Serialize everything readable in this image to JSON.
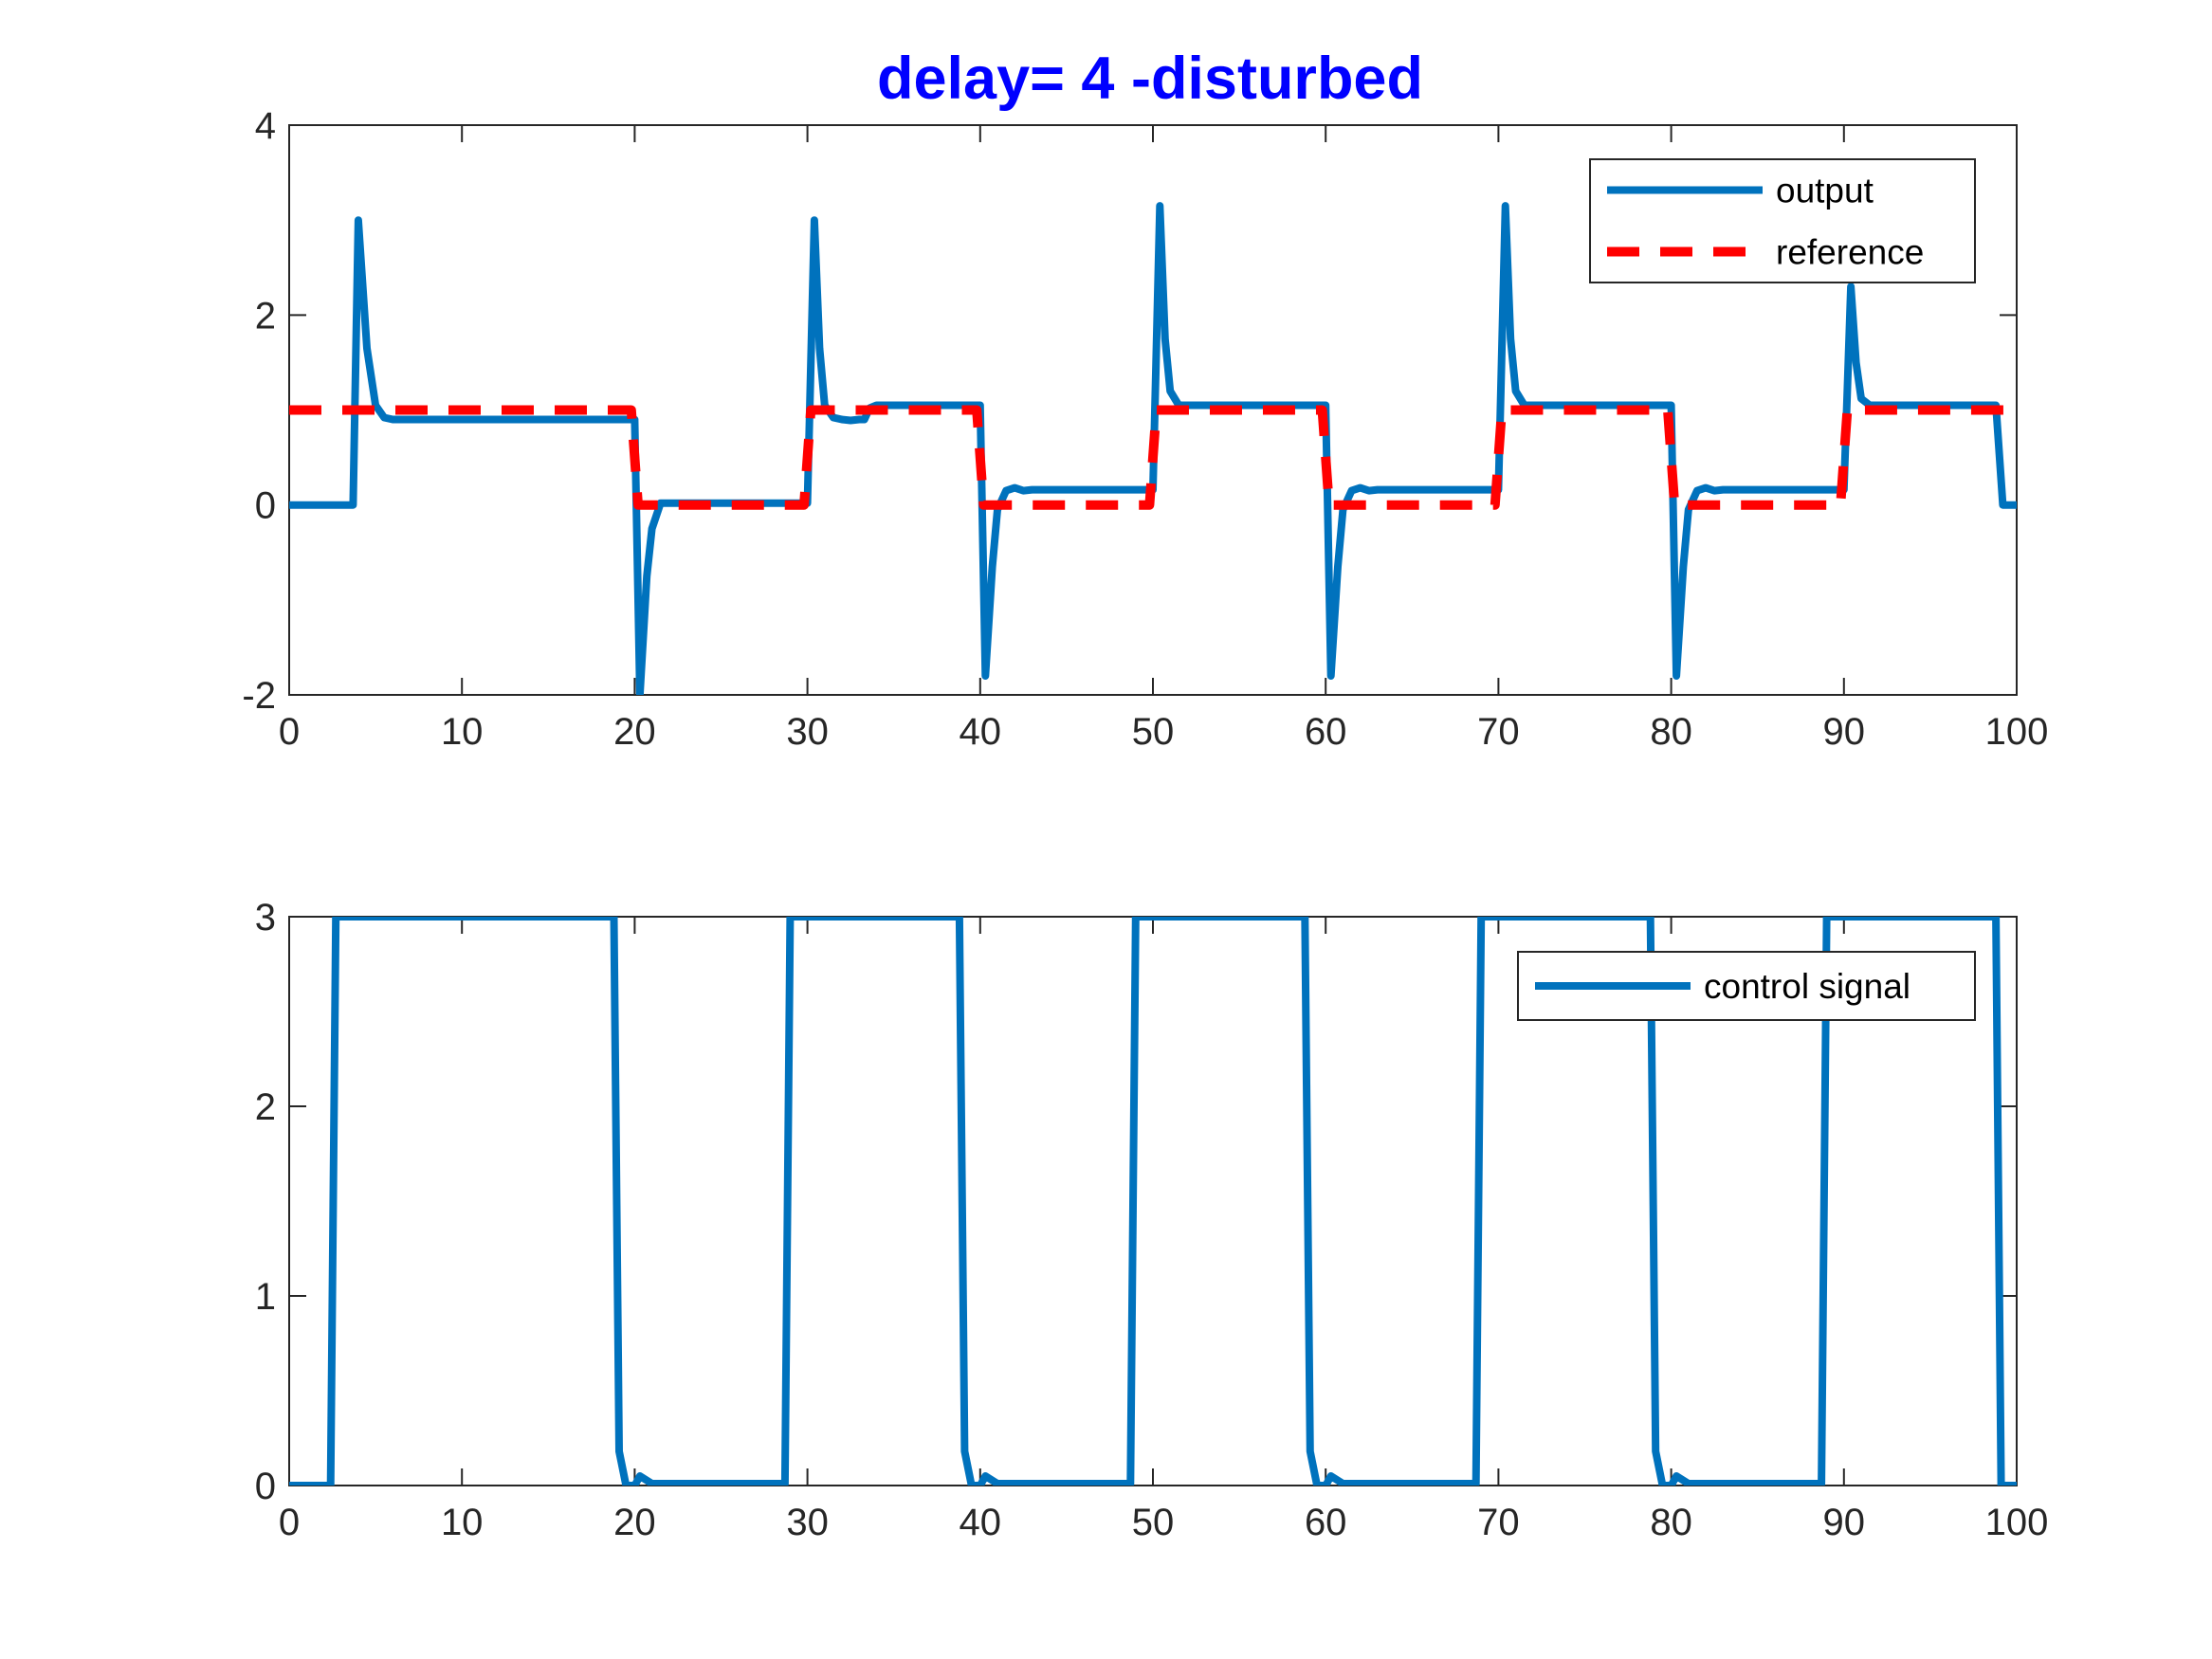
{
  "colors": {
    "output": "#0072bd",
    "reference": "#ff0000",
    "control": "#0072bd",
    "title": "#0000ff",
    "axes": "#262626"
  },
  "chart_data": [
    {
      "type": "line",
      "title": "delay= 4 -disturbed",
      "xlabel": "",
      "ylabel": "",
      "xlim": [
        0,
        100
      ],
      "ylim": [
        -2,
        4
      ],
      "xticks": [
        "0",
        "10",
        "20",
        "30",
        "40",
        "50",
        "60",
        "70",
        "80",
        "90",
        "100"
      ],
      "yticks": [
        "-2",
        "0",
        "2",
        "4"
      ],
      "grid": false,
      "legend_position": "top-right",
      "series": [
        {
          "name": "output",
          "style": "solid",
          "x": [
            0,
            3.7,
            4,
            4.5,
            5,
            5.5,
            6,
            7,
            10,
            15,
            19.8,
            20,
            20.3,
            20.7,
            21,
            21.5,
            22,
            22.5,
            23,
            24,
            29.8,
            30,
            30.4,
            30.7,
            31,
            31.5,
            32,
            32.5,
            33,
            33.3,
            33.6,
            34,
            35,
            39.8,
            40,
            40.3,
            40.7,
            41,
            41.5,
            42,
            42.5,
            43,
            45,
            49.8,
            50,
            50.4,
            50.7,
            51,
            51.5,
            52,
            55,
            59.8,
            60,
            60.3,
            60.7,
            61,
            61.5,
            62,
            62.5,
            63,
            65,
            69.8,
            70,
            70.4,
            70.7,
            71,
            71.5,
            72,
            75,
            79.8,
            80,
            80.3,
            80.7,
            81,
            81.5,
            82,
            82.5,
            83,
            85,
            89.8,
            90,
            90.4,
            90.7,
            91,
            91.5,
            92,
            95,
            98.5,
            98.8,
            99.2,
            100
          ],
          "values": [
            0,
            0,
            3.0,
            1.65,
            1.05,
            0.92,
            0.9,
            0.9,
            0.9,
            0.9,
            0.9,
            0.9,
            -2.0,
            -0.75,
            -0.25,
            0.02,
            0.02,
            0.02,
            0.02,
            0.02,
            0.02,
            0.02,
            3.0,
            1.65,
            1.05,
            0.92,
            0.9,
            0.89,
            0.9,
            0.9,
            1.02,
            1.05,
            1.05,
            1.05,
            1.05,
            -1.8,
            -0.65,
            -0.05,
            0.15,
            0.18,
            0.15,
            0.16,
            0.16,
            0.16,
            0.16,
            3.15,
            1.75,
            1.2,
            1.05,
            1.05,
            1.05,
            1.05,
            1.05,
            -1.8,
            -0.65,
            -0.05,
            0.15,
            0.18,
            0.15,
            0.16,
            0.16,
            0.16,
            0.16,
            3.15,
            1.75,
            1.2,
            1.05,
            1.05,
            1.05,
            1.05,
            1.05,
            -1.8,
            -0.65,
            -0.05,
            0.15,
            0.18,
            0.15,
            0.16,
            0.16,
            0.16,
            0.16,
            2.3,
            1.5,
            1.12,
            1.05,
            1.05,
            1.05,
            1.05,
            1.05,
            0,
            0
          ]
        },
        {
          "name": "reference",
          "style": "dashed",
          "x": [
            0,
            19.8,
            20,
            20.2,
            29.8,
            30,
            30.2,
            39.8,
            40,
            40.2,
            49.8,
            50,
            50.2,
            59.8,
            60,
            60.2,
            69.8,
            70,
            70.2,
            79.8,
            80,
            80.2,
            89.8,
            90,
            90.2,
            100
          ],
          "values": [
            1,
            1,
            0.5,
            0,
            0,
            0.5,
            1,
            1,
            0.5,
            0,
            0,
            0.5,
            1,
            1,
            0.5,
            0,
            0,
            0.5,
            1,
            1,
            0.5,
            0,
            0,
            0.5,
            1,
            1
          ]
        }
      ]
    },
    {
      "type": "line",
      "title": "",
      "xlabel": "",
      "ylabel": "",
      "xlim": [
        0,
        100
      ],
      "ylim": [
        0,
        3
      ],
      "xticks": [
        "0",
        "10",
        "20",
        "30",
        "40",
        "50",
        "60",
        "70",
        "80",
        "90",
        "100"
      ],
      "yticks": [
        "0",
        "1",
        "2",
        "3"
      ],
      "grid": false,
      "legend_position": "top-right",
      "series": [
        {
          "name": "control signal",
          "style": "solid",
          "x": [
            0,
            2.4,
            2.7,
            18.8,
            19.1,
            19.5,
            20,
            20.3,
            21,
            28.7,
            29,
            38.8,
            39.1,
            39.5,
            40,
            40.3,
            41,
            48.7,
            49,
            58.8,
            59.1,
            59.5,
            60,
            60.3,
            61,
            68.7,
            69,
            78.8,
            79.1,
            79.5,
            80,
            80.3,
            81,
            88.7,
            89,
            98.8,
            99.1,
            100
          ],
          "values": [
            0,
            0,
            3,
            3,
            0.18,
            0,
            0,
            0.05,
            0.01,
            0.01,
            3,
            3,
            0.18,
            0,
            0,
            0.05,
            0.01,
            0.01,
            3,
            3,
            0.18,
            0,
            0,
            0.05,
            0.01,
            0.01,
            3,
            3,
            0.18,
            0,
            0,
            0.05,
            0.01,
            0.01,
            3,
            3,
            0,
            0
          ]
        }
      ]
    }
  ]
}
